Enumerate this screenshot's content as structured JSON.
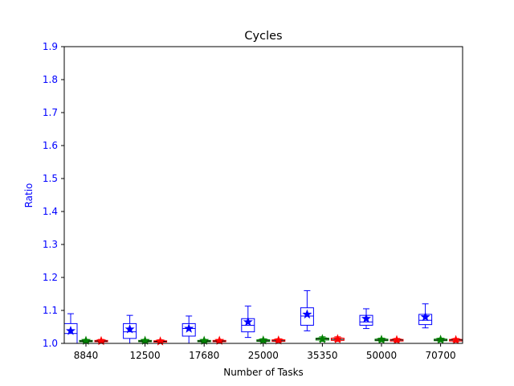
{
  "chart_data": {
    "type": "box",
    "title": "Cycles",
    "xlabel": "Number of Tasks",
    "ylabel": "Ratio",
    "ylim": [
      1.0,
      1.9
    ],
    "yticks": [
      "1.0",
      "1.1",
      "1.2",
      "1.3",
      "1.4",
      "1.5",
      "1.6",
      "1.7",
      "1.8",
      "1.9"
    ],
    "categories": [
      "8840",
      "12500",
      "17680",
      "25000",
      "35350",
      "50000",
      "70700"
    ],
    "grid": false,
    "axis_color": "#0000ff",
    "series": [
      {
        "color": "#0000ff",
        "boxes": [
          {
            "whislo": 1.0,
            "q1": 1.0,
            "med": 1.03,
            "q3": 1.06,
            "whishi": 1.09,
            "mean": 1.038
          },
          {
            "whislo": 1.0,
            "q1": 1.015,
            "med": 1.035,
            "q3": 1.06,
            "whishi": 1.085,
            "mean": 1.043
          },
          {
            "whislo": 1.0,
            "q1": 1.022,
            "med": 1.045,
            "q3": 1.06,
            "whishi": 1.083,
            "mean": 1.045
          },
          {
            "whislo": 1.018,
            "q1": 1.035,
            "med": 1.055,
            "q3": 1.075,
            "whishi": 1.113,
            "mean": 1.065
          },
          {
            "whislo": 1.038,
            "q1": 1.055,
            "med": 1.083,
            "q3": 1.108,
            "whishi": 1.16,
            "mean": 1.088
          },
          {
            "whislo": 1.045,
            "q1": 1.055,
            "med": 1.065,
            "q3": 1.085,
            "whishi": 1.105,
            "mean": 1.075
          },
          {
            "whislo": 1.047,
            "q1": 1.057,
            "med": 1.07,
            "q3": 1.088,
            "whishi": 1.12,
            "mean": 1.08
          }
        ]
      },
      {
        "color": "#008000",
        "boxes": [
          {
            "whislo": 1.003,
            "q1": 1.005,
            "med": 1.007,
            "q3": 1.009,
            "whishi": 1.012,
            "mean": 1.008
          },
          {
            "whislo": 1.003,
            "q1": 1.005,
            "med": 1.007,
            "q3": 1.009,
            "whishi": 1.012,
            "mean": 1.008
          },
          {
            "whislo": 1.003,
            "q1": 1.005,
            "med": 1.007,
            "q3": 1.009,
            "whishi": 1.012,
            "mean": 1.008
          },
          {
            "whislo": 1.004,
            "q1": 1.006,
            "med": 1.008,
            "q3": 1.011,
            "whishi": 1.014,
            "mean": 1.009
          },
          {
            "whislo": 1.006,
            "q1": 1.01,
            "med": 1.013,
            "q3": 1.016,
            "whishi": 1.02,
            "mean": 1.013
          },
          {
            "whislo": 1.005,
            "q1": 1.008,
            "med": 1.01,
            "q3": 1.013,
            "whishi": 1.016,
            "mean": 1.011
          },
          {
            "whislo": 1.005,
            "q1": 1.008,
            "med": 1.01,
            "q3": 1.013,
            "whishi": 1.016,
            "mean": 1.011
          }
        ]
      },
      {
        "color": "#ff0000",
        "boxes": [
          {
            "whislo": 1.003,
            "q1": 1.005,
            "med": 1.007,
            "q3": 1.009,
            "whishi": 1.012,
            "mean": 1.007
          },
          {
            "whislo": 1.003,
            "q1": 1.004,
            "med": 1.006,
            "q3": 1.008,
            "whishi": 1.011,
            "mean": 1.006
          },
          {
            "whislo": 1.003,
            "q1": 1.005,
            "med": 1.007,
            "q3": 1.009,
            "whishi": 1.012,
            "mean": 1.008
          },
          {
            "whislo": 1.004,
            "q1": 1.006,
            "med": 1.008,
            "q3": 1.011,
            "whishi": 1.014,
            "mean": 1.009
          },
          {
            "whislo": 1.006,
            "q1": 1.009,
            "med": 1.012,
            "q3": 1.016,
            "whishi": 1.02,
            "mean": 1.013
          },
          {
            "whislo": 1.005,
            "q1": 1.007,
            "med": 1.01,
            "q3": 1.012,
            "whishi": 1.015,
            "mean": 1.01
          },
          {
            "whislo": 1.005,
            "q1": 1.007,
            "med": 1.01,
            "q3": 1.012,
            "whishi": 1.015,
            "mean": 1.01
          }
        ]
      }
    ]
  }
}
